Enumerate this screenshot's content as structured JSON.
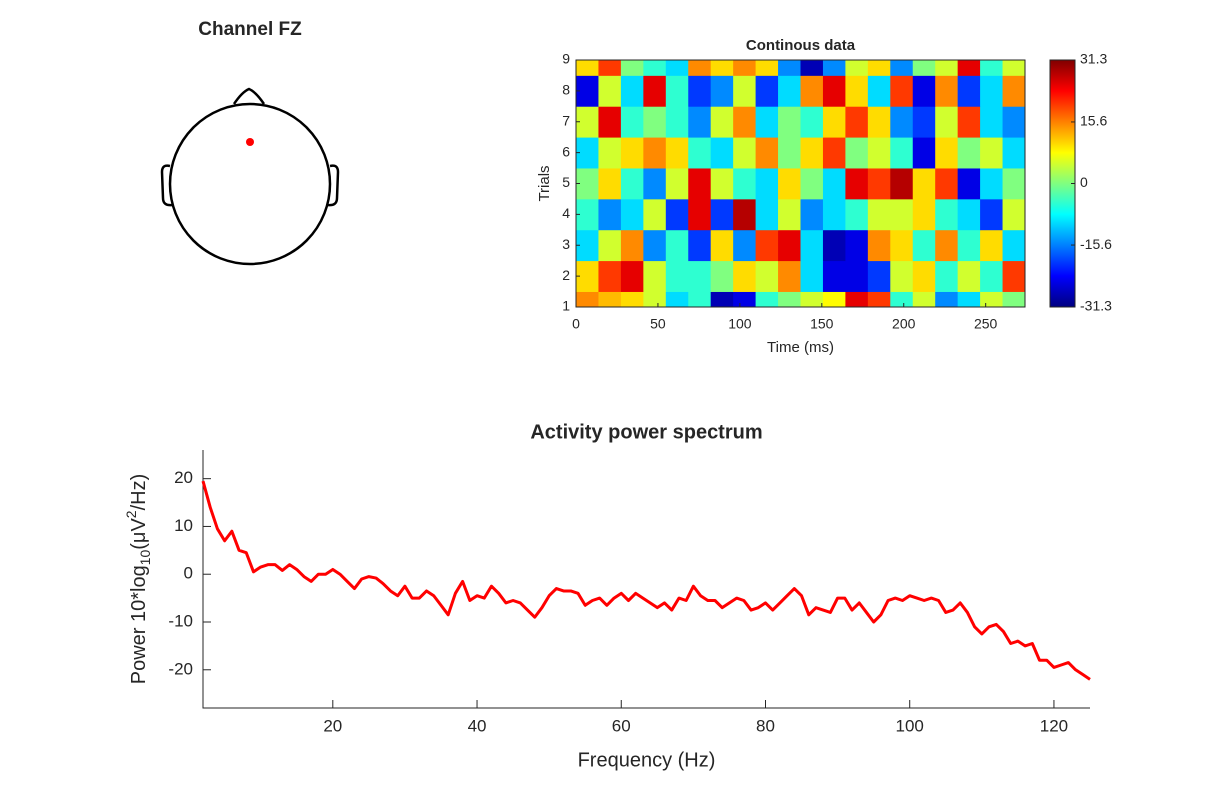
{
  "chart_data": [
    {
      "type": "topo",
      "title": "Channel FZ",
      "color": "#ff0000"
    },
    {
      "type": "heatmap",
      "title": "Continous data",
      "xlabel": "Time (ms)",
      "ylabel": "Trials",
      "colormap": "jet",
      "xlim": [
        0,
        274
      ],
      "ylim": [
        1,
        9
      ],
      "xticks": [
        0,
        50,
        100,
        150,
        200,
        250
      ],
      "yticks": [
        1,
        2,
        3,
        4,
        5,
        6,
        7,
        8,
        9
      ],
      "y": [
        1,
        2,
        3,
        4,
        5,
        6,
        7,
        8,
        9
      ],
      "clim": [
        -31.3,
        31.3
      ],
      "cticks": [
        -31.3,
        -15.6,
        0,
        15.6,
        31.3
      ],
      "z": [
        [
          15,
          12,
          10,
          5,
          -10,
          -5,
          -28,
          -25,
          -5,
          0,
          5,
          8,
          25,
          20,
          -5,
          5,
          -15,
          -10,
          5,
          0
        ],
        [
          10,
          20,
          25,
          5,
          -5,
          -5,
          0,
          10,
          5,
          15,
          -10,
          -25,
          -25,
          -20,
          5,
          10,
          -5,
          5,
          -5,
          20
        ],
        [
          -10,
          5,
          15,
          -15,
          -5,
          -20,
          10,
          -15,
          20,
          25,
          -10,
          -28,
          -25,
          15,
          10,
          -5,
          15,
          -5,
          10,
          -10
        ],
        [
          -5,
          -15,
          -10,
          5,
          -20,
          25,
          -20,
          28,
          -10,
          5,
          -15,
          -10,
          -5,
          5,
          5,
          10,
          -5,
          -10,
          -20,
          5
        ],
        [
          0,
          10,
          -5,
          -15,
          5,
          25,
          5,
          -5,
          -10,
          10,
          0,
          -10,
          25,
          20,
          28,
          10,
          20,
          -25,
          -10,
          0
        ],
        [
          -10,
          5,
          10,
          15,
          10,
          -5,
          -10,
          5,
          15,
          0,
          10,
          20,
          0,
          5,
          -5,
          -25,
          10,
          0,
          5,
          -10
        ],
        [
          5,
          25,
          -5,
          0,
          -5,
          -15,
          5,
          15,
          -10,
          0,
          -5,
          10,
          20,
          10,
          -15,
          -20,
          5,
          20,
          -10,
          -15
        ],
        [
          -25,
          5,
          -10,
          25,
          -5,
          -20,
          -15,
          5,
          -20,
          -10,
          15,
          25,
          10,
          -10,
          20,
          -25,
          15,
          -20,
          -10,
          15
        ],
        [
          10,
          20,
          0,
          -5,
          -10,
          15,
          10,
          15,
          10,
          -15,
          -28,
          -15,
          5,
          10,
          -15,
          0,
          5,
          25,
          -5,
          5
        ]
      ]
    },
    {
      "type": "line",
      "title": "Activity power spectrum",
      "xlabel": "Frequency (Hz)",
      "ylabel": [
        "Power 10*log",
        "10",
        "(μV",
        "2",
        "/Hz)"
      ],
      "xlim": [
        2,
        125
      ],
      "ylim": [
        -28,
        26
      ],
      "xticks": [
        20,
        40,
        60,
        80,
        100,
        120
      ],
      "yticks": [
        -20,
        -10,
        0,
        10,
        20
      ],
      "x": [
        2,
        3,
        4,
        5,
        6,
        7,
        8,
        9,
        10,
        11,
        12,
        13,
        14,
        15,
        16,
        17,
        18,
        19,
        20,
        21,
        22,
        23,
        24,
        25,
        26,
        27,
        28,
        29,
        30,
        31,
        32,
        33,
        34,
        35,
        36,
        37,
        38,
        39,
        40,
        41,
        42,
        43,
        44,
        45,
        46,
        47,
        48,
        49,
        50,
        51,
        52,
        53,
        54,
        55,
        56,
        57,
        58,
        59,
        60,
        61,
        62,
        63,
        64,
        65,
        66,
        67,
        68,
        69,
        70,
        71,
        72,
        73,
        74,
        75,
        76,
        77,
        78,
        79,
        80,
        81,
        82,
        83,
        84,
        85,
        86,
        87,
        88,
        89,
        90,
        91,
        92,
        93,
        94,
        95,
        96,
        97,
        98,
        99,
        100,
        101,
        102,
        103,
        104,
        105,
        106,
        107,
        108,
        109,
        110,
        111,
        112,
        113,
        114,
        115,
        116,
        117,
        118,
        119,
        120,
        121,
        122,
        123,
        124,
        125
      ],
      "series": [
        {
          "color": "#ff0000",
          "values": [
            19.5,
            14,
            9.5,
            7,
            9,
            5,
            4.5,
            0.5,
            1.5,
            2,
            2,
            0.8,
            2,
            1,
            -0.5,
            -1.5,
            0,
            0,
            1,
            0,
            -1.5,
            -3,
            -1,
            -0.5,
            -0.8,
            -2,
            -3.5,
            -4.5,
            -2.5,
            -5,
            -5,
            -3.5,
            -4.5,
            -6.5,
            -8.5,
            -4,
            -1.5,
            -5.5,
            -4.5,
            -5,
            -2.5,
            -4,
            -6,
            -5.5,
            -6,
            -7.5,
            -9,
            -7,
            -4.5,
            -3,
            -3.5,
            -3.5,
            -4,
            -6.5,
            -5.5,
            -5,
            -6.5,
            -5,
            -4,
            -5.5,
            -4,
            -5,
            -6,
            -7,
            -6,
            -7.5,
            -5,
            -5.5,
            -2.5,
            -4.5,
            -5.5,
            -5.5,
            -7,
            -6,
            -5,
            -5.5,
            -7.5,
            -7,
            -6,
            -7.5,
            -6,
            -4.5,
            -3,
            -4.5,
            -8.5,
            -7,
            -7.5,
            -8,
            -5,
            -5,
            -7.5,
            -6,
            -8,
            -10,
            -8.5,
            -5.5,
            -5,
            -5.5,
            -4.5,
            -5,
            -5.5,
            -5,
            -5.5,
            -8,
            -7.5,
            -6,
            -8,
            -11,
            -12.5,
            -11,
            -10.5,
            -12,
            -14.5,
            -14,
            -15,
            -14.5,
            -18,
            -18,
            -19.5,
            -19,
            -18.5,
            -20,
            -21,
            -22
          ]
        }
      ]
    }
  ]
}
